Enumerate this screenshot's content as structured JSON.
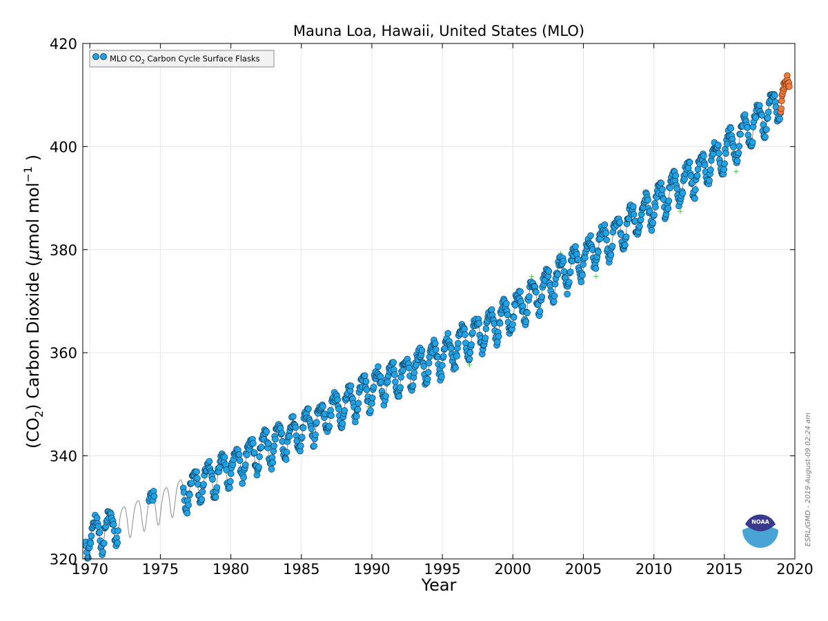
{
  "chart_data": {
    "type": "scatter",
    "title": "Mauna Loa, Hawaii, United States (MLO)",
    "xlabel": "Year",
    "ylabel": {
      "prefix": "(CO",
      "sub": "2",
      "middle": ") Carbon Dioxide (",
      "mu": "μ",
      "unit": "mol mol",
      "sup": "−1",
      "suffix": " )"
    },
    "xlim": [
      1969.5,
      2020
    ],
    "ylim": [
      320,
      420
    ],
    "xticks": [
      "1970",
      "1975",
      "1980",
      "1985",
      "1990",
      "1995",
      "2000",
      "2005",
      "2010",
      "2015",
      "2020"
    ],
    "yticks": [
      "320",
      "340",
      "360",
      "380",
      "400",
      "420"
    ],
    "grid": true,
    "legend": {
      "placement": "top-left",
      "label_prefix": "MLO CO",
      "label_sub": "2",
      "label_suffix": " Carbon Cycle Surface Flasks"
    },
    "colors": {
      "flask": "#1fa2e6",
      "flask_edge": "#0b2a40",
      "preliminary": "#f07a3c",
      "preliminary_edge": "#6b2d0e",
      "rejected": "#3ec63e",
      "trend": "#8a8a8a"
    },
    "model": {
      "description": "monthly means approximated from the figure",
      "base_values": [
        [
          1970,
          324.5
        ],
        [
          1975,
          330.5
        ],
        [
          1980,
          338.0
        ],
        [
          1985,
          345.0
        ],
        [
          1990,
          353.0
        ],
        [
          1995,
          359.5
        ],
        [
          2000,
          368.0
        ],
        [
          2005,
          378.5
        ],
        [
          2010,
          388.5
        ],
        [
          2015,
          399.0
        ],
        [
          2019,
          409.0
        ]
      ],
      "seasonal_amplitude_ppm": 3.2,
      "data_gaps": [
        [
          1972.0,
          1974.2
        ],
        [
          1974.6,
          1976.6
        ]
      ],
      "final_preliminary_period": [
        2019.0,
        2019.6
      ]
    },
    "series": [
      {
        "name": "MLO CO2 Carbon Cycle Surface Flasks",
        "marker": "circle"
      }
    ]
  },
  "watermark": "ESRL/GMD - 2019-August-09 02:24 am",
  "logo": {
    "text": "NOAA",
    "icon": "noaa-logo"
  }
}
